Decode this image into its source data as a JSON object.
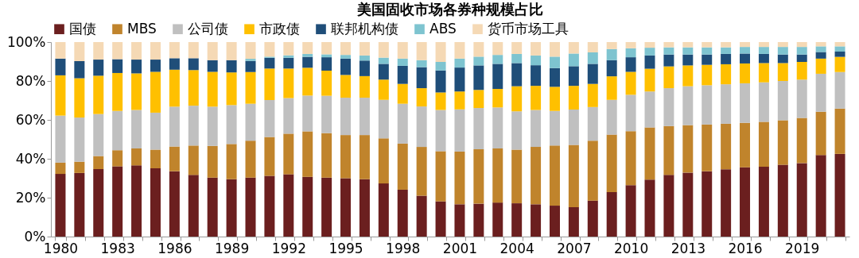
{
  "chart_data": {
    "type": "bar",
    "title": "美国固收市场各券种规模占比",
    "stacked": true,
    "legend": "top",
    "grid": false,
    "categories": [
      "1980",
      null,
      null,
      "1983",
      null,
      null,
      "1986",
      null,
      null,
      "1989",
      null,
      null,
      "1992",
      null,
      null,
      "1995",
      null,
      null,
      "1998",
      null,
      null,
      "2001",
      null,
      null,
      "2004",
      null,
      null,
      "2007",
      null,
      null,
      "2010",
      null,
      null,
      "2013",
      null,
      null,
      "2016",
      null,
      null,
      "2019",
      null,
      null
    ],
    "ylim": [
      0,
      100
    ],
    "yticks": [
      {
        "value": 0,
        "label": "0%"
      },
      {
        "value": 20,
        "label": "20%"
      },
      {
        "value": 40,
        "label": "40%"
      },
      {
        "value": 60,
        "label": "60%"
      },
      {
        "value": 80,
        "label": "80%"
      },
      {
        "value": 100,
        "label": "100%"
      }
    ],
    "series": [
      {
        "name": "国债",
        "color": "#6b1f1f",
        "values": [
          32.2,
          32.7,
          34.7,
          36.1,
          36.6,
          35.1,
          33.6,
          31.7,
          30.3,
          29.5,
          30.3,
          31.2,
          32.0,
          30.7,
          30.3,
          30.0,
          29.5,
          27.3,
          24.1,
          21.0,
          18.1,
          16.6,
          16.9,
          17.5,
          17.1,
          16.6,
          15.9,
          15.1,
          18.5,
          22.9,
          26.4,
          29.3,
          31.7,
          32.9,
          33.6,
          34.6,
          35.6,
          35.9,
          36.9,
          37.8,
          41.9,
          42.5
        ]
      },
      {
        "name": "MBS",
        "color": "#c0842c",
        "values": [
          5.8,
          5.8,
          6.7,
          8.3,
          8.7,
          9.6,
          12.7,
          15.1,
          16.3,
          18.1,
          19.0,
          20.0,
          20.9,
          23.4,
          22.9,
          22.2,
          22.7,
          23.2,
          23.7,
          25.1,
          25.8,
          27.1,
          28.0,
          27.8,
          27.6,
          29.5,
          30.9,
          32.0,
          30.8,
          29.5,
          27.8,
          26.8,
          25.1,
          24.4,
          24.0,
          23.4,
          22.9,
          23.1,
          22.9,
          23.2,
          22.3,
          23.3
        ]
      },
      {
        "name": "公司债",
        "color": "#c0c0c0",
        "values": [
          24.2,
          22.7,
          21.6,
          20.2,
          19.8,
          19.0,
          20.5,
          20.5,
          20.2,
          20.0,
          19.0,
          19.0,
          18.3,
          18.4,
          19.2,
          19.2,
          19.2,
          19.8,
          20.5,
          20.8,
          21.2,
          21.7,
          21.2,
          21.1,
          19.7,
          19.0,
          17.8,
          18.2,
          17.3,
          17.9,
          18.7,
          18.5,
          19.5,
          20.0,
          20.2,
          20.3,
          20.3,
          20.3,
          20.2,
          19.7,
          19.5,
          18.8
        ]
      },
      {
        "name": "市政债",
        "color": "#ffc000",
        "values": [
          20.7,
          20.2,
          19.7,
          19.5,
          18.8,
          21.0,
          19.0,
          18.3,
          17.9,
          16.8,
          16.3,
          16.2,
          15.2,
          14.3,
          12.9,
          11.7,
          11.1,
          10.4,
          10.2,
          9.4,
          9.0,
          9.2,
          9.3,
          9.5,
          12.9,
          12.4,
          12.4,
          12.2,
          11.9,
          12.1,
          11.8,
          11.7,
          11.2,
          10.7,
          10.5,
          10.3,
          10.2,
          9.9,
          9.2,
          9.1,
          7.8,
          7.8
        ]
      },
      {
        "name": "联邦机构债",
        "color": "#1f4e79",
        "values": [
          8.6,
          8.8,
          8.3,
          7.1,
          7.1,
          6.3,
          5.9,
          6.1,
          6.0,
          6.3,
          5.7,
          5.5,
          5.5,
          5.6,
          6.9,
          8.4,
          8.0,
          8.1,
          9.3,
          10.8,
          11.3,
          12.3,
          12.6,
          12.9,
          11.9,
          10.6,
          9.6,
          10.1,
          10.3,
          8.3,
          7.5,
          6.8,
          6.1,
          5.6,
          5.3,
          5.3,
          5.1,
          4.7,
          4.4,
          3.8,
          3.4,
          2.7
        ]
      },
      {
        "name": "ABS",
        "color": "#7ec4d0",
        "values": [
          null,
          null,
          null,
          null,
          null,
          null,
          null,
          null,
          null,
          null,
          1.1,
          0.6,
          1.3,
          1.5,
          1.5,
          1.9,
          2.6,
          3.2,
          3.7,
          3.6,
          4.4,
          4.6,
          4.5,
          4.6,
          4.7,
          5.0,
          5.9,
          6.5,
          5.9,
          5.7,
          4.6,
          4.0,
          3.7,
          3.7,
          3.7,
          3.4,
          3.4,
          3.6,
          3.9,
          3.9,
          2.9,
          2.7
        ]
      },
      {
        "name": "货币市场工具",
        "color": "#f5d9b5",
        "values": [
          8.5,
          9.8,
          9.0,
          8.8,
          9.0,
          9.0,
          8.3,
          8.3,
          9.3,
          9.3,
          8.6,
          7.5,
          6.8,
          6.1,
          6.3,
          6.6,
          6.9,
          8.0,
          8.5,
          9.3,
          10.2,
          8.5,
          7.5,
          6.6,
          6.1,
          6.9,
          7.5,
          5.9,
          5.3,
          3.6,
          3.2,
          2.9,
          2.7,
          2.7,
          2.7,
          2.7,
          2.5,
          2.5,
          2.5,
          2.5,
          2.2,
          2.2
        ]
      }
    ]
  }
}
